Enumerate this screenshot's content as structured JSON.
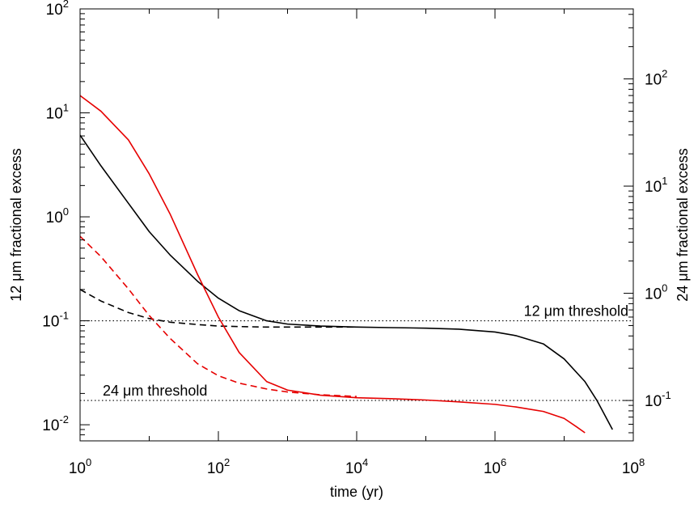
{
  "chart_data": {
    "type": "line",
    "title": "",
    "xlabel": "time (yr)",
    "ylabel_left": "12 μm fractional excess",
    "ylabel_right": "24 μm fractional excess",
    "x_scale": "log",
    "y_scale": "log",
    "xlim": [
      1,
      100000000
    ],
    "ylim_left": [
      0.007,
      100
    ],
    "ylim_right": [
      0.042,
      450
    ],
    "grid": false,
    "legend": "none",
    "x_ticks": [
      {
        "base": "10",
        "exp": "0"
      },
      {
        "base": "10",
        "exp": "2"
      },
      {
        "base": "10",
        "exp": "4"
      },
      {
        "base": "10",
        "exp": "6"
      },
      {
        "base": "10",
        "exp": "8"
      }
    ],
    "y_ticks_left": [
      {
        "base": "10",
        "exp": "-2"
      },
      {
        "base": "10",
        "exp": "-1"
      },
      {
        "base": "10",
        "exp": "0"
      },
      {
        "base": "10",
        "exp": "1"
      },
      {
        "base": "10",
        "exp": "2"
      }
    ],
    "y_ticks_right": [
      {
        "base": "10",
        "exp": "-1"
      },
      {
        "base": "10",
        "exp": "0"
      },
      {
        "base": "10",
        "exp": "1"
      },
      {
        "base": "10",
        "exp": "2"
      }
    ],
    "thresholds": [
      {
        "label": "12 μm threshold",
        "axis": "left",
        "value": 0.1,
        "style": "dotted",
        "color": "#000000"
      },
      {
        "label": "24 μm threshold",
        "axis": "right",
        "value": 0.1,
        "style": "dotted",
        "color": "#000000"
      }
    ],
    "series": [
      {
        "axis": "left",
        "color": "#000000",
        "style": "solid",
        "x": [
          1,
          2,
          5,
          10,
          20,
          50,
          100,
          200,
          500,
          1000,
          3000,
          10000,
          30000,
          100000,
          300000,
          1000000,
          2000000,
          5000000,
          10000000,
          20000000,
          30000000,
          50000000
        ],
        "y": [
          6.1,
          3.1,
          1.35,
          0.72,
          0.43,
          0.24,
          0.165,
          0.125,
          0.1,
          0.093,
          0.089,
          0.087,
          0.086,
          0.085,
          0.083,
          0.078,
          0.072,
          0.06,
          0.043,
          0.026,
          0.017,
          0.009
        ]
      },
      {
        "axis": "left",
        "color": "#000000",
        "style": "dashed",
        "x": [
          1,
          2,
          5,
          10,
          20,
          50,
          100,
          200,
          500,
          1000,
          3000,
          10000
        ],
        "y": [
          0.2,
          0.155,
          0.12,
          0.105,
          0.097,
          0.092,
          0.089,
          0.088,
          0.087,
          0.087,
          0.087,
          0.087
        ]
      },
      {
        "axis": "right",
        "color": "#e60000",
        "style": "solid",
        "x": [
          1,
          2,
          5,
          10,
          20,
          50,
          100,
          200,
          500,
          1000,
          3000,
          10000,
          30000,
          100000,
          300000,
          1000000,
          2000000,
          5000000,
          10000000,
          15000000,
          20000000
        ],
        "y": [
          70,
          50,
          27,
          13,
          5.5,
          1.5,
          0.6,
          0.28,
          0.15,
          0.125,
          0.112,
          0.106,
          0.104,
          0.101,
          0.097,
          0.092,
          0.087,
          0.079,
          0.068,
          0.057,
          0.05
        ]
      },
      {
        "axis": "right",
        "color": "#e60000",
        "style": "dashed",
        "x": [
          1,
          2,
          5,
          10,
          20,
          50,
          100,
          200,
          500,
          1000,
          3000,
          10000
        ],
        "y": [
          3.4,
          2.2,
          1.1,
          0.62,
          0.38,
          0.22,
          0.17,
          0.145,
          0.128,
          0.12,
          0.113,
          0.109
        ]
      }
    ]
  }
}
